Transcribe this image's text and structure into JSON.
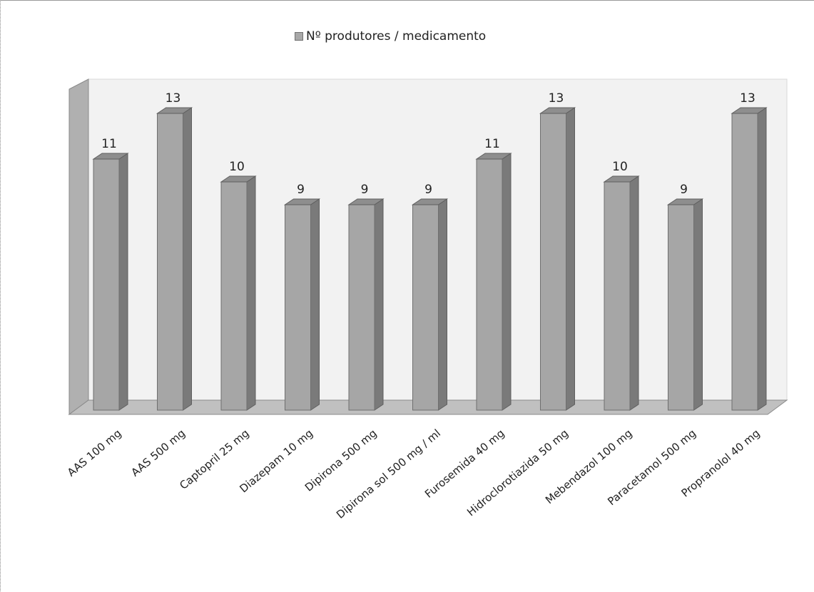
{
  "chart_data": {
    "type": "bar",
    "legend": {
      "label": "Nº produtores / medicamento",
      "position": "top"
    },
    "categories": [
      "AAS 100 mg",
      "AAS 500 mg",
      "Captopril 25 mg",
      "Diazepam 10 mg",
      "Dipirona 500 mg",
      "Dipirona sol 500 mg / ml",
      "Furosemida 40 mg",
      "Hidroclorotiazida 50 mg",
      "Mebendazol 100 mg",
      "Paracetamol 500 mg",
      "Propranolol 40 mg"
    ],
    "series": [
      {
        "name": "Nº produtores / medicamento",
        "values": [
          11,
          13,
          10,
          9,
          9,
          9,
          11,
          13,
          10,
          9,
          13
        ]
      }
    ],
    "data_labels": [
      "11",
      "13",
      "10",
      "9",
      "9",
      "9",
      "11",
      "13",
      "10",
      "9",
      "13"
    ],
    "ylim": [
      0,
      13
    ],
    "grid": false,
    "style": "3d-column",
    "colors": {
      "bar_front": "#a6a6a6",
      "bar_side": "#7a7a7a",
      "bar_top": "#8e8e8e",
      "back_wall": "#f2f2f2",
      "side_wall": "#b0b0b0",
      "floor": "#c0c0c0"
    }
  }
}
